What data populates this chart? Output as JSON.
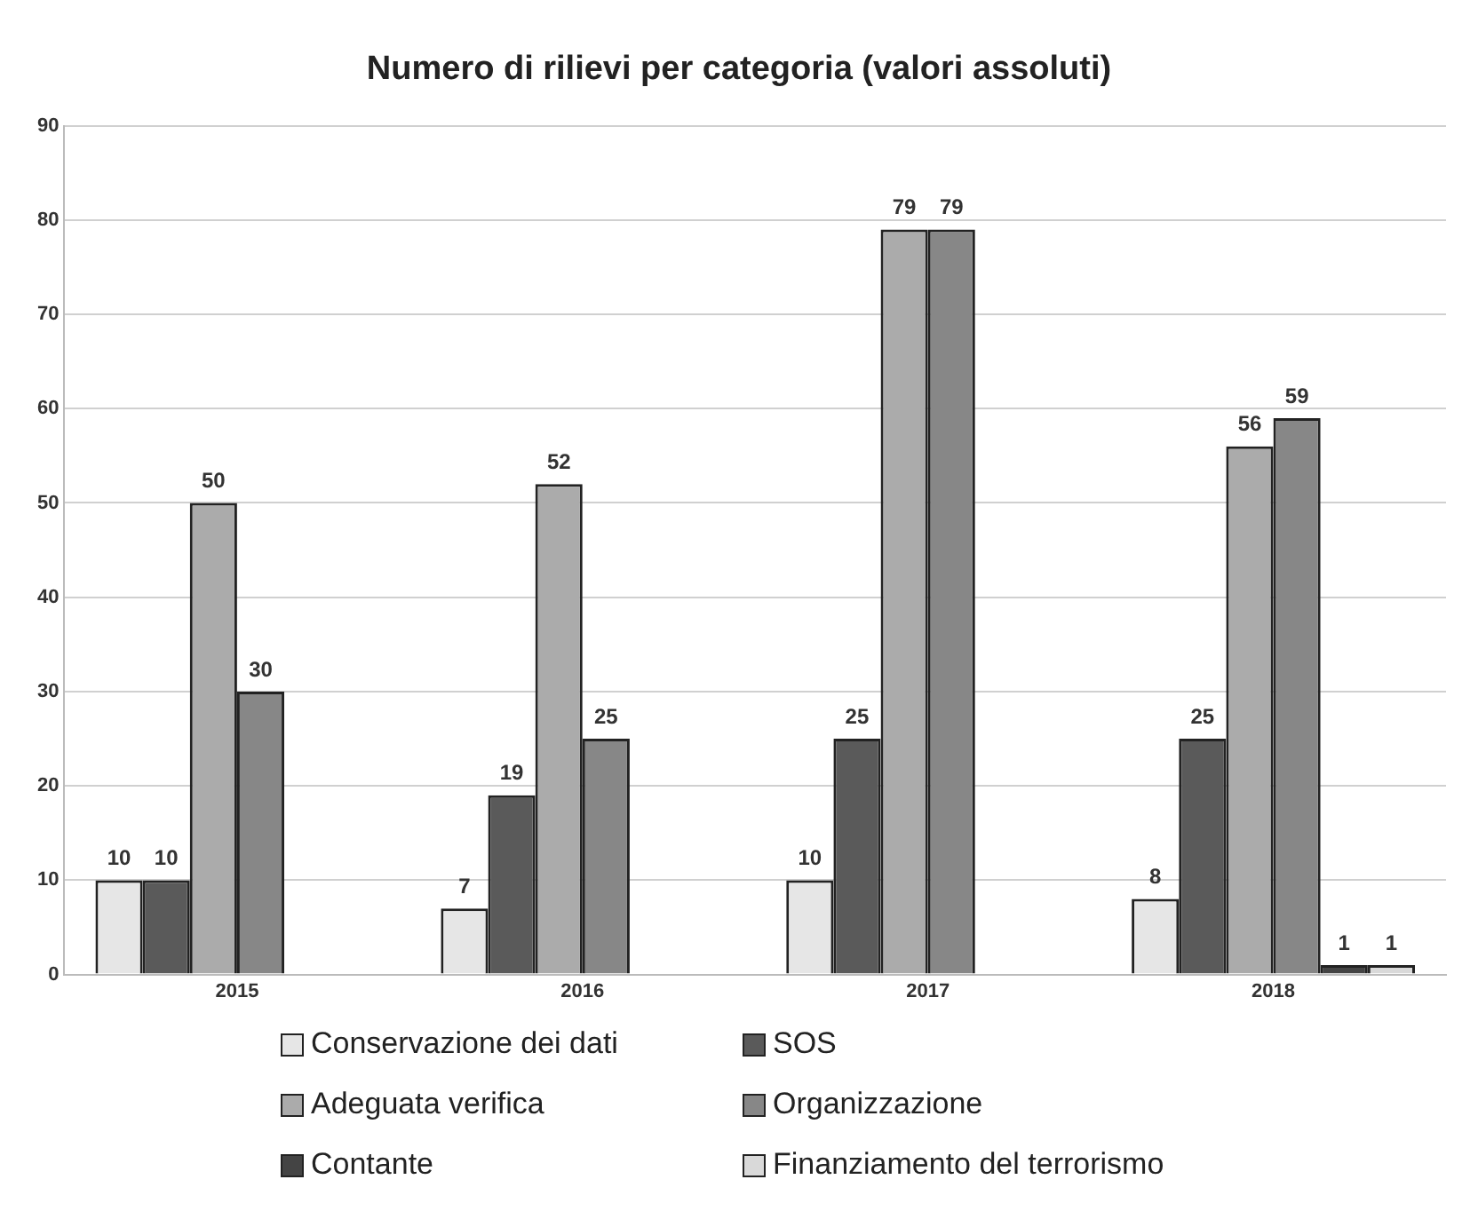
{
  "chart_data": {
    "type": "bar",
    "title": "Numero di rilievi per categoria (valori assoluti)",
    "categories": [
      "2015",
      "2016",
      "2017",
      "2018"
    ],
    "series": [
      {
        "name": "Conservazione dei dati",
        "color": "#e6e6e6",
        "values": [
          10,
          7,
          10,
          8
        ]
      },
      {
        "name": "SOS",
        "color": "#5a5a5a",
        "values": [
          10,
          19,
          25,
          25
        ]
      },
      {
        "name": "Adeguata verifica",
        "color": "#ababab",
        "values": [
          50,
          52,
          79,
          56
        ]
      },
      {
        "name": "Organizzazione",
        "color": "#878787",
        "values": [
          30,
          25,
          79,
          59
        ]
      },
      {
        "name": "Contante",
        "color": "#444444",
        "values": [
          null,
          null,
          null,
          1
        ]
      },
      {
        "name": "Finanziamento del terrorismo",
        "color": "#d9d9d9",
        "values": [
          null,
          null,
          null,
          1
        ]
      }
    ],
    "ylim": [
      0,
      90
    ],
    "yticks": [
      0,
      10,
      20,
      30,
      40,
      50,
      60,
      70,
      80,
      90
    ],
    "grid": "y",
    "legend": "bottom",
    "data_labels": true
  }
}
